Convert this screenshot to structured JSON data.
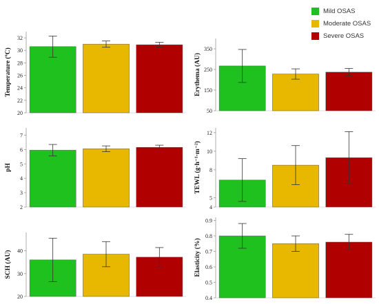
{
  "legend": [
    {
      "name": "Mild OSAS",
      "color": "#1fc11f"
    },
    {
      "name": "Moderate OSAS",
      "color": "#e8b800"
    },
    {
      "name": "Severe OSAS",
      "color": "#b00000"
    }
  ],
  "colors": [
    "#1fc11f",
    "#e8b800",
    "#b00000"
  ],
  "chart_data": [
    {
      "type": "bar",
      "ylabel": "Temperature (ºC)",
      "ylim": [
        20,
        33
      ],
      "ticks": [
        20,
        22,
        24,
        26,
        28,
        30,
        32
      ],
      "series": [
        {
          "name": "Mild OSAS",
          "values": [
            30.6
          ],
          "error": [
            1.7
          ]
        },
        {
          "name": "Moderate OSAS",
          "values": [
            31.0
          ],
          "error": [
            0.5
          ]
        },
        {
          "name": "Severe OSAS",
          "values": [
            30.9
          ],
          "error": [
            0.4
          ]
        }
      ]
    },
    {
      "type": "bar",
      "ylabel": "Erythema (AU)",
      "ylim": [
        50,
        400
      ],
      "ticks": [
        50,
        150,
        250,
        350
      ],
      "series": [
        {
          "name": "Mild OSAS",
          "values": [
            267
          ],
          "error": [
            80
          ]
        },
        {
          "name": "Moderate OSAS",
          "values": [
            228
          ],
          "error": [
            25
          ]
        },
        {
          "name": "Severe OSAS",
          "values": [
            237
          ],
          "error": [
            18
          ]
        }
      ]
    },
    {
      "type": "bar",
      "ylabel": "pH",
      "ylim": [
        2,
        7.5
      ],
      "ticks": [
        2,
        3,
        4,
        5,
        6,
        7
      ],
      "series": [
        {
          "name": "Mild OSAS",
          "values": [
            5.95
          ],
          "error": [
            0.4
          ]
        },
        {
          "name": "Moderate OSAS",
          "values": [
            6.05
          ],
          "error": [
            0.2
          ]
        },
        {
          "name": "Severe OSAS",
          "values": [
            6.15
          ],
          "error": [
            0.15
          ]
        }
      ]
    },
    {
      "type": "bar",
      "ylabel": "TEWL (g·h⁻¹·m⁻²)",
      "ylim": [
        4,
        12.5
      ],
      "ticks": [
        4,
        5,
        8,
        10,
        12
      ],
      "tick_labels": [
        "4",
        "5",
        "8",
        "10",
        "12"
      ],
      "series": [
        {
          "name": "Mild OSAS",
          "values": [
            6.9
          ],
          "error": [
            2.3
          ]
        },
        {
          "name": "Moderate OSAS",
          "values": [
            8.5
          ],
          "error": [
            2.1
          ]
        },
        {
          "name": "Severe OSAS",
          "values": [
            9.3
          ],
          "error": [
            2.8
          ]
        }
      ]
    },
    {
      "type": "bar",
      "ylabel": "SCH (AU)",
      "ylim": [
        20,
        48
      ],
      "ticks": [
        20,
        30,
        40
      ],
      "series": [
        {
          "name": "Mild OSAS",
          "values": [
            36
          ],
          "error": [
            9.5
          ]
        },
        {
          "name": "Moderate OSAS",
          "values": [
            38.5
          ],
          "error": [
            5.5
          ]
        },
        {
          "name": "Severe OSAS",
          "values": [
            37.2
          ],
          "error": [
            4.2
          ]
        }
      ]
    },
    {
      "type": "bar",
      "ylabel": "Elasticity (%)",
      "ylim": [
        0.4,
        0.92
      ],
      "ticks": [
        0.4,
        0.5,
        0.6,
        0.7,
        0.8,
        0.9
      ],
      "series": [
        {
          "name": "Mild OSAS",
          "values": [
            0.8
          ],
          "error": [
            0.08
          ]
        },
        {
          "name": "Moderate OSAS",
          "values": [
            0.75
          ],
          "error": [
            0.05
          ]
        },
        {
          "name": "Severe OSAS",
          "values": [
            0.76
          ],
          "error": [
            0.05
          ]
        }
      ]
    }
  ]
}
